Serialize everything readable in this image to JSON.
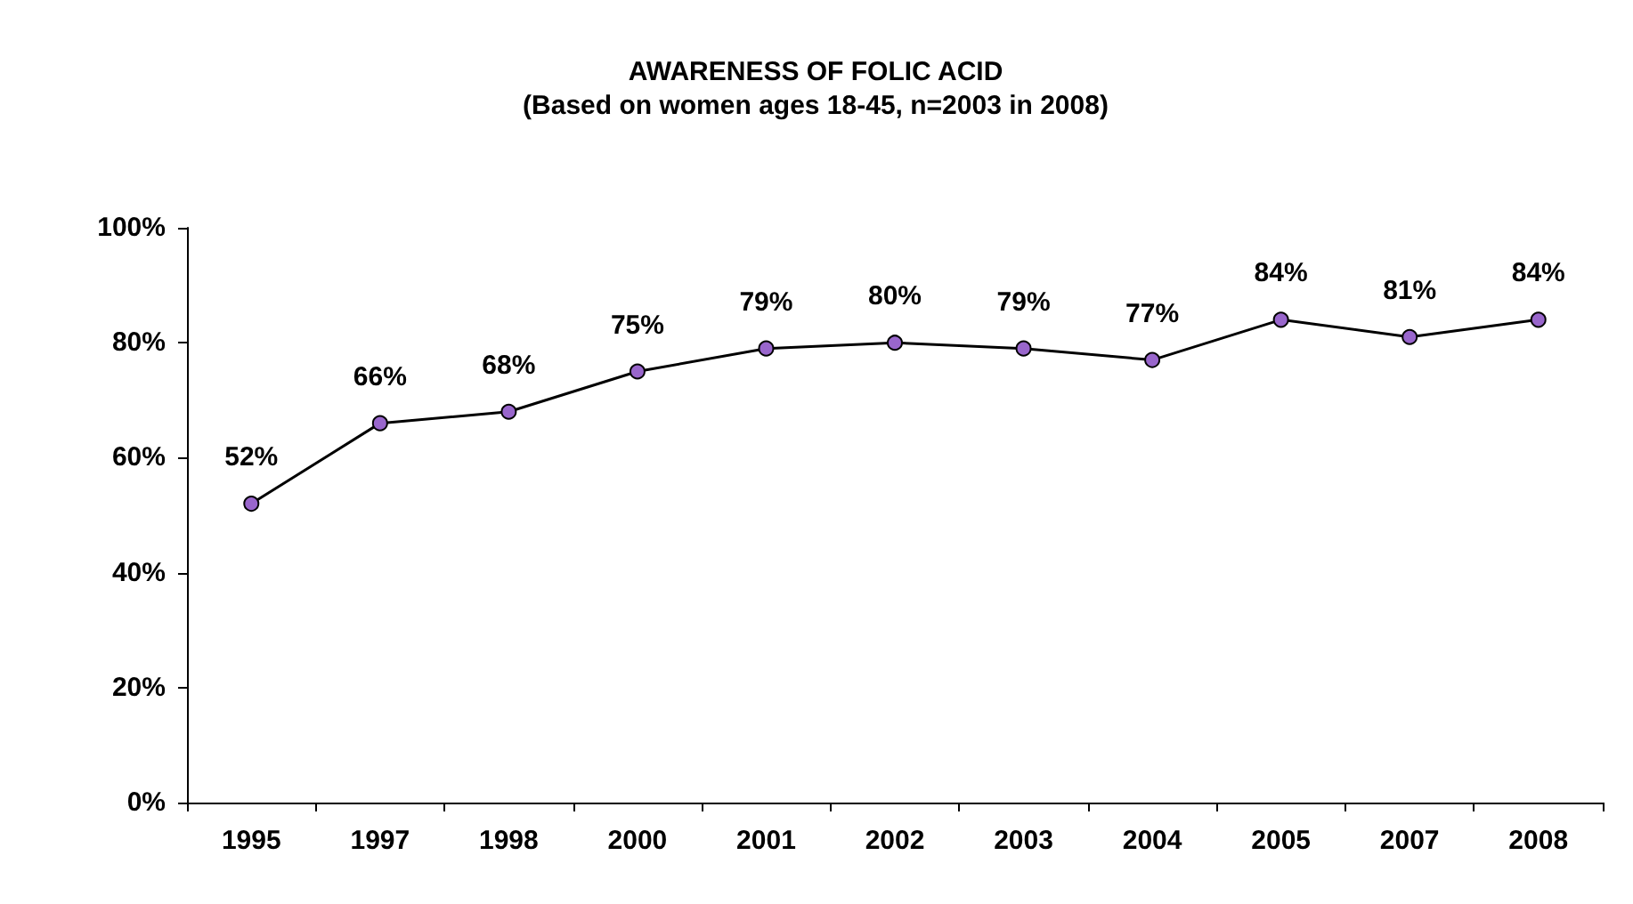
{
  "chart_data": {
    "type": "line",
    "title": "AWARENESS OF FOLIC ACID",
    "subtitle": "(Based on women ages 18-45, n=2003 in 2008)",
    "categories": [
      "1995",
      "1997",
      "1998",
      "2000",
      "2001",
      "2002",
      "2003",
      "2004",
      "2005",
      "2007",
      "2008"
    ],
    "series": [
      {
        "color": "#9966cc",
        "values": [
          52,
          66,
          68,
          75,
          79,
          80,
          79,
          77,
          84,
          81,
          84
        ],
        "value_labels": [
          "52%",
          "66%",
          "68%",
          "75%",
          "79%",
          "80%",
          "79%",
          "77%",
          "84%",
          "81%",
          "84%"
        ]
      }
    ],
    "ylim": [
      0,
      100
    ],
    "yticks": [
      {
        "value": 0,
        "label": "0%"
      },
      {
        "value": 20,
        "label": "20%"
      },
      {
        "value": 40,
        "label": "40%"
      },
      {
        "value": 60,
        "label": "60%"
      },
      {
        "value": 80,
        "label": "80%"
      },
      {
        "value": 100,
        "label": "100%"
      }
    ],
    "grid": false,
    "marker": "circle",
    "line_style": "solid"
  }
}
